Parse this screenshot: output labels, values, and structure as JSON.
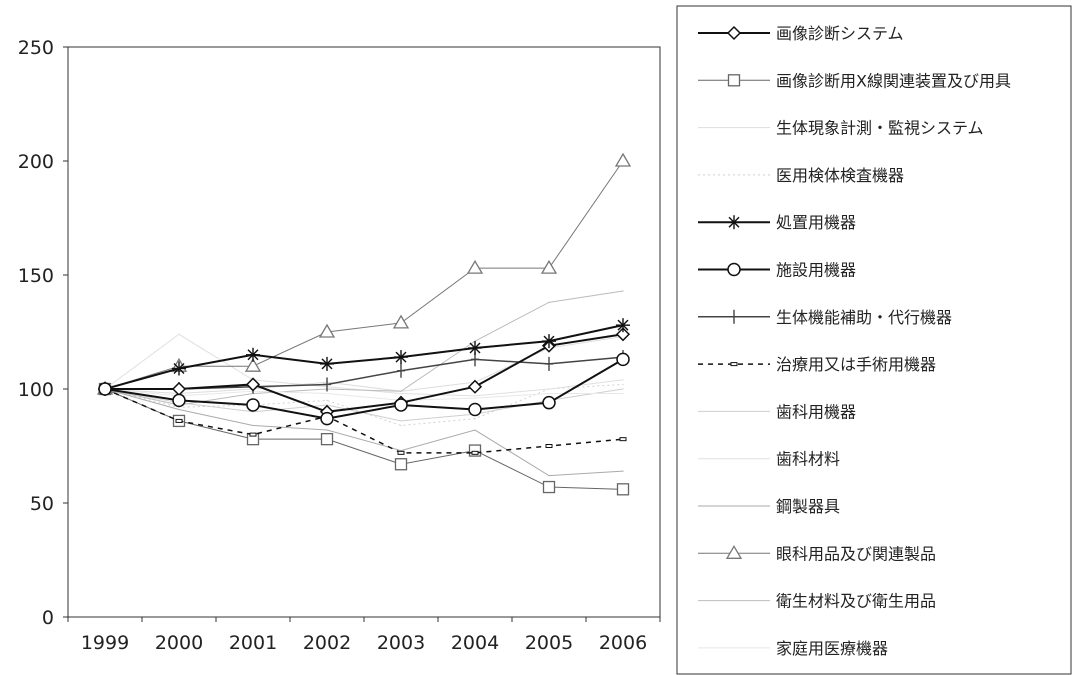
{
  "chart_data": {
    "type": "line",
    "x": [
      "1999",
      "2000",
      "2001",
      "2002",
      "2003",
      "2004",
      "2005",
      "2006"
    ],
    "ylim": [
      0,
      250
    ],
    "yticks": [
      0,
      50,
      100,
      150,
      200,
      250
    ],
    "grid": false,
    "legend": "right",
    "series": [
      {
        "name": "画像診断システム",
        "values": [
          100,
          100,
          102,
          90,
          94,
          101,
          119,
          124
        ],
        "marker": "diamond",
        "dash": "solid",
        "color": "#111111",
        "width": 2
      },
      {
        "name": "画像診断用X線関連装置及び用具",
        "values": [
          100,
          86,
          78,
          78,
          67,
          73,
          57,
          56
        ],
        "marker": "square",
        "dash": "solid",
        "color": "#666666",
        "width": 1
      },
      {
        "name": "生体現象計測・監視システム",
        "values": [
          100,
          98,
          100,
          103,
          99,
          103,
          118,
          123
        ],
        "marker": "none",
        "dash": "solid",
        "color": "#dddddd",
        "width": 1
      },
      {
        "name": "医用検体検査機器",
        "values": [
          100,
          92,
          93,
          95,
          84,
          87,
          100,
          102
        ],
        "marker": "none",
        "dash": "dot",
        "color": "#d0d0d0",
        "width": 1
      },
      {
        "name": "処置用機器",
        "values": [
          100,
          109,
          115,
          111,
          114,
          118,
          121,
          128
        ],
        "marker": "asterisk",
        "dash": "solid",
        "color": "#111111",
        "width": 2
      },
      {
        "name": "施設用機器",
        "values": [
          100,
          95,
          93,
          87,
          93,
          91,
          94,
          113
        ],
        "marker": "circle",
        "dash": "solid",
        "color": "#111111",
        "width": 2
      },
      {
        "name": "生体機能補助・代行機器",
        "values": [
          100,
          100,
          101,
          102,
          108,
          113,
          111,
          114
        ],
        "marker": "plus",
        "dash": "solid",
        "color": "#444444",
        "width": 1.5
      },
      {
        "name": "治療用又は手術用機器",
        "values": [
          100,
          86,
          80,
          88,
          72,
          72,
          75,
          78
        ],
        "marker": "dash",
        "dash": "dash",
        "color": "#111111",
        "width": 1.5
      },
      {
        "name": "歯科用機器",
        "values": [
          100,
          94,
          90,
          93,
          86,
          89,
          95,
          100
        ],
        "marker": "none",
        "dash": "solid",
        "color": "#cfcfcf",
        "width": 1
      },
      {
        "name": "歯科材料",
        "values": [
          100,
          124,
          104,
          101,
          98,
          97,
          100,
          104
        ],
        "marker": "none",
        "dash": "solid",
        "color": "#e0e0e0",
        "width": 1
      },
      {
        "name": "鋼製器具",
        "values": [
          100,
          91,
          84,
          82,
          73,
          82,
          62,
          64
        ],
        "marker": "none",
        "dash": "solid",
        "color": "#aaaaaa",
        "width": 1
      },
      {
        "name": "眼科用品及び関連製品",
        "values": [
          100,
          110,
          110,
          125,
          129,
          153,
          153,
          200
        ],
        "marker": "triangle",
        "dash": "solid",
        "color": "#777777",
        "width": 1
      },
      {
        "name": "衛生材料及び衛生用品",
        "values": [
          100,
          93,
          98,
          100,
          99,
          121,
          138,
          143
        ],
        "marker": "none",
        "dash": "solid",
        "color": "#bbbbbb",
        "width": 1
      },
      {
        "name": "家庭用医療機器",
        "values": [
          100,
          97,
          99,
          98,
          95,
          96,
          98,
          98
        ],
        "marker": "none",
        "dash": "solid",
        "color": "#e8e8e8",
        "width": 1
      }
    ]
  }
}
